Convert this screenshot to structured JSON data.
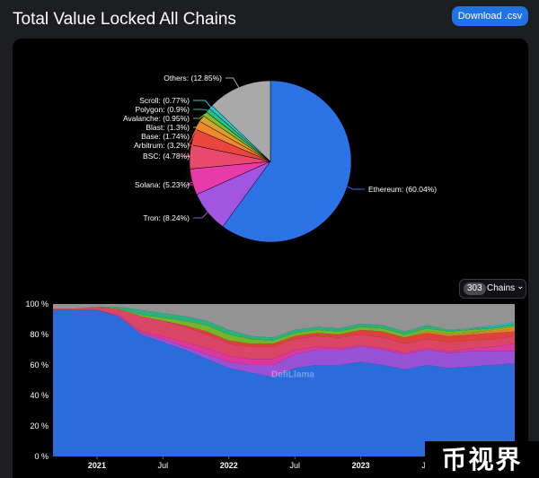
{
  "page": {
    "title": "Total Value Locked All Chains",
    "download_label": "Download .csv"
  },
  "chains_selector": {
    "count": "303",
    "label": "Chains"
  },
  "watermark": {
    "text": "DefiLlama"
  },
  "badge": {
    "text": "币视界"
  },
  "colors": {
    "ethereum": "#2c73e6",
    "tron": "#a155e0",
    "solana": "#e63aa8",
    "bsc": "#e84a6c",
    "arbitrum": "#e8463f",
    "base": "#f0882e",
    "blast": "#d9a12a",
    "avalanche": "#7bbf2c",
    "polygon": "#2dbb86",
    "scroll": "#26c8c8",
    "others": "#a9a9a9"
  },
  "chart_data": [
    {
      "type": "pie",
      "slices": [
        {
          "label": "Ethereum",
          "value": 60.04,
          "display": "Ethereum: (60.04%)",
          "color": "#2c73e6"
        },
        {
          "label": "Tron",
          "value": 8.24,
          "display": "Tron: (8.24%)",
          "color": "#a155e0"
        },
        {
          "label": "Solana",
          "value": 5.23,
          "display": "Solana: (5.23%)",
          "color": "#e63aa8"
        },
        {
          "label": "BSC",
          "value": 4.78,
          "display": "BSC: (4.78%)",
          "color": "#e84a6c"
        },
        {
          "label": "Arbitrum",
          "value": 3.2,
          "display": "Arbitrum: (3.2%)",
          "color": "#e8463f"
        },
        {
          "label": "Base",
          "value": 1.74,
          "display": "Base: (1.74%)",
          "color": "#f0882e"
        },
        {
          "label": "Blast",
          "value": 1.3,
          "display": "Blast: (1.3%)",
          "color": "#d9a12a"
        },
        {
          "label": "Avalanche",
          "value": 0.95,
          "display": "Avalanche: (0.95%)",
          "color": "#7bbf2c"
        },
        {
          "label": "Polygon",
          "value": 0.9,
          "display": "Polygon: (0.9%)",
          "color": "#2dbb86"
        },
        {
          "label": "Scroll",
          "value": 0.77,
          "display": "Scroll: (0.77%)",
          "color": "#26c8c8"
        },
        {
          "label": "Others",
          "value": 12.85,
          "display": "Others: (12.85%)",
          "color": "#a9a9a9"
        }
      ]
    },
    {
      "type": "area",
      "stacked_percent": true,
      "x": [
        "2020-09",
        "2020-11",
        "2021-01",
        "2021-03",
        "2021-05",
        "2021-07",
        "2021-09",
        "2021-11",
        "2022-01",
        "2022-03",
        "2022-05",
        "2022-07",
        "2022-09",
        "2022-11",
        "2023-01",
        "2023-03",
        "2023-05",
        "2023-07",
        "2023-09",
        "2023-11",
        "2024-01",
        "2024-03"
      ],
      "xtick_labels": [
        "2021",
        "Jul",
        "2022",
        "Jul",
        "2023",
        "Jul"
      ],
      "yticks": [
        "0 %",
        "20 %",
        "40 %",
        "60 %",
        "80 %",
        "100 %"
      ],
      "ylim": [
        0,
        100
      ],
      "grid": false,
      "series": [
        {
          "name": "Ethereum",
          "color": "#2c73e6",
          "values": [
            96,
            96,
            96,
            92,
            80,
            75,
            70,
            64,
            58,
            55,
            52,
            58,
            60,
            60,
            62,
            60,
            57,
            60,
            58,
            59,
            60,
            61
          ]
        },
        {
          "name": "Tron",
          "color": "#a155e0",
          "values": [
            0,
            0,
            0,
            0.5,
            1,
            2,
            2,
            3,
            4,
            5,
            8,
            9,
            10,
            10,
            10,
            10,
            10,
            10,
            10,
            10,
            9,
            8
          ]
        },
        {
          "name": "Solana",
          "color": "#e63aa8",
          "values": [
            0,
            0,
            0,
            0.5,
            1,
            2,
            3,
            4,
            4,
            4,
            4,
            3,
            2,
            1,
            1,
            1,
            1,
            1,
            1,
            2,
            3,
            5
          ]
        },
        {
          "name": "BSC",
          "color": "#e84a6c",
          "values": [
            1,
            1,
            2,
            4,
            10,
            10,
            10,
            9,
            8,
            8,
            8,
            7,
            7,
            7,
            7,
            7,
            6,
            6,
            6,
            5,
            5,
            5
          ]
        },
        {
          "name": "Arbitrum",
          "color": "#e8463f",
          "values": [
            0,
            0,
            0,
            0,
            0,
            0,
            1,
            2,
            2,
            2,
            2,
            2,
            2,
            2,
            3,
            4,
            4,
            4,
            4,
            4,
            4,
            3
          ]
        },
        {
          "name": "Base",
          "color": "#f0882e",
          "values": [
            0,
            0,
            0,
            0,
            0,
            0,
            0,
            0,
            0,
            0,
            0,
            0,
            0,
            0,
            0,
            0,
            0,
            1,
            1,
            1,
            1,
            2
          ]
        },
        {
          "name": "Blast",
          "color": "#d9a12a",
          "values": [
            0,
            0,
            0,
            0,
            0,
            0,
            0,
            0,
            0,
            0,
            0,
            0,
            0,
            0,
            0,
            0,
            0,
            0,
            0,
            0,
            1,
            1
          ]
        },
        {
          "name": "Avalanche",
          "color": "#7bbf2c",
          "values": [
            0,
            0,
            0,
            0.5,
            1,
            2,
            3,
            4,
            4,
            3,
            2,
            2,
            2,
            2,
            2,
            2,
            2,
            2,
            2,
            2,
            1,
            1
          ]
        },
        {
          "name": "Polygon",
          "color": "#2dbb86",
          "values": [
            0,
            0,
            0,
            1,
            3,
            3,
            3,
            3,
            3,
            2,
            2,
            2,
            2,
            2,
            2,
            2,
            2,
            2,
            1,
            1,
            1,
            1
          ]
        },
        {
          "name": "Scroll",
          "color": "#26c8c8",
          "values": [
            0,
            0,
            0,
            0,
            0,
            0,
            0,
            0,
            0,
            0,
            0,
            0,
            0,
            0,
            0,
            0,
            0,
            0,
            0,
            0,
            1,
            1
          ]
        },
        {
          "name": "Others",
          "color": "#9b9b9b",
          "values": [
            3,
            3,
            2,
            2,
            4,
            6,
            8,
            11,
            17,
            21,
            22,
            17,
            15,
            16,
            13,
            14,
            18,
            14,
            17,
            16,
            14,
            12
          ]
        }
      ]
    }
  ]
}
